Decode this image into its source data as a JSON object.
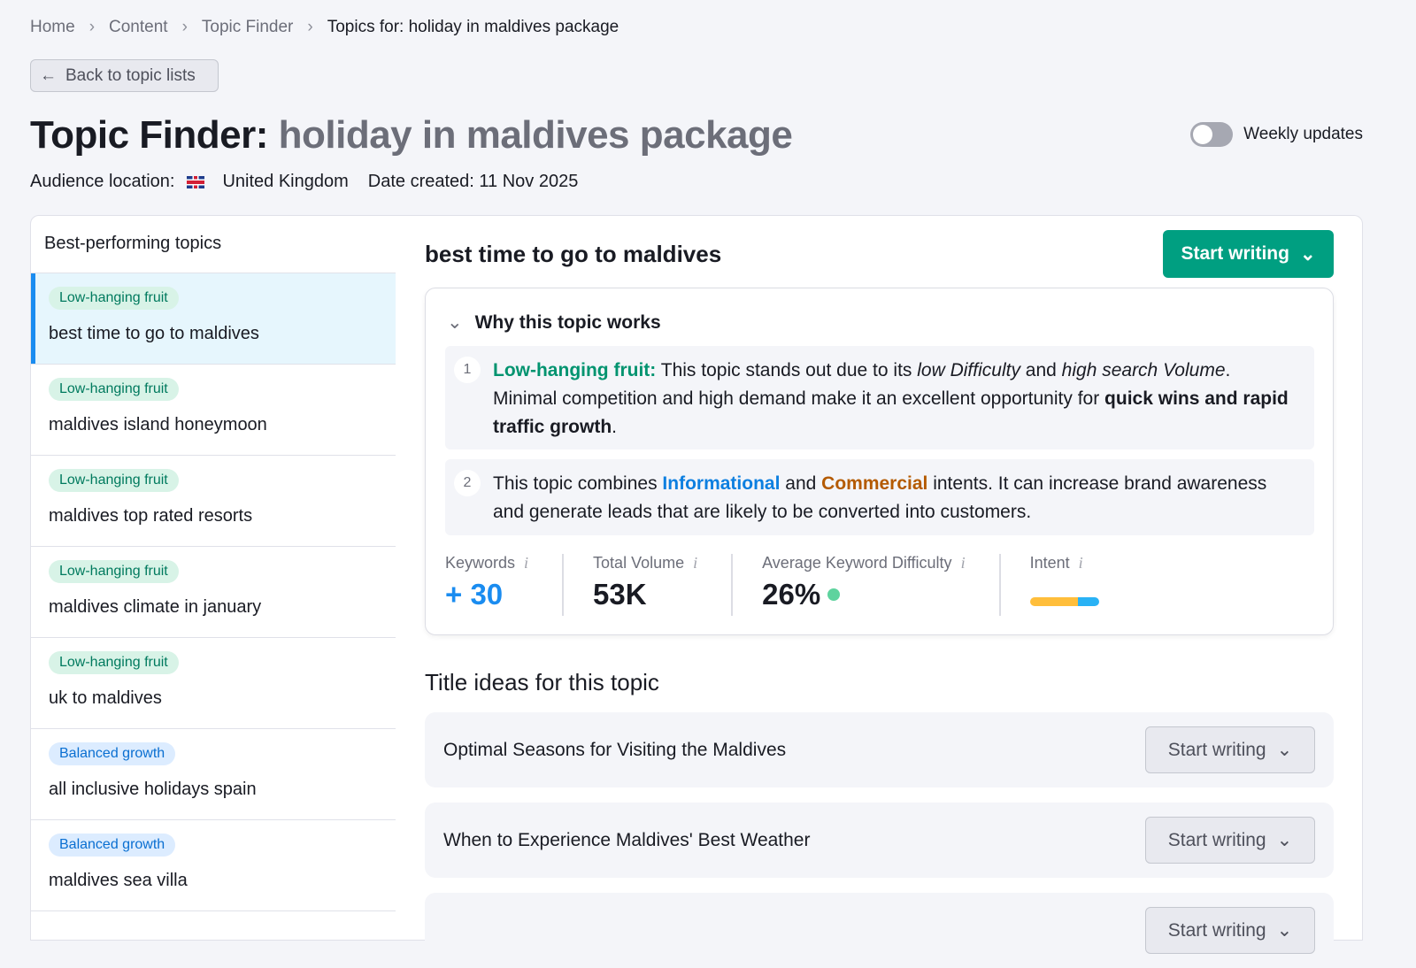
{
  "breadcrumb": [
    "Home",
    "Content",
    "Topic Finder",
    "Topics for: holiday in maldives package"
  ],
  "back_label": "Back to topic lists",
  "title": {
    "prefix": "Topic Finder:",
    "keyword": "holiday in maldives package"
  },
  "meta": {
    "audience_label": "Audience location:",
    "country": "United Kingdom",
    "date_label": "Date created: 11 Nov 2025"
  },
  "weekly_updates": {
    "label": "Weekly updates",
    "enabled": false
  },
  "sidebar": {
    "header": "Best-performing topics",
    "items": [
      {
        "tag": "Low-hanging fruit",
        "type": "g",
        "title": "best time to go to maldives",
        "selected": true
      },
      {
        "tag": "Low-hanging fruit",
        "type": "g",
        "title": "maldives island honeymoon"
      },
      {
        "tag": "Low-hanging fruit",
        "type": "g",
        "title": "maldives top rated resorts"
      },
      {
        "tag": "Low-hanging fruit",
        "type": "g",
        "title": "maldives climate in january"
      },
      {
        "tag": "Low-hanging fruit",
        "type": "g",
        "title": "uk to maldives"
      },
      {
        "tag": "Balanced growth",
        "type": "b",
        "title": "all inclusive holidays spain"
      },
      {
        "tag": "Balanced growth",
        "type": "b",
        "title": "maldives sea villa"
      }
    ]
  },
  "main": {
    "topic": "best time to go to maldives",
    "start_writing": "Start writing",
    "why": {
      "heading": "Why this topic works",
      "r1": {
        "n": "1",
        "label": "Low-hanging fruit:",
        "t1": " This topic stands out due to its ",
        "e1": "low Difficulty",
        "t2": " and ",
        "e2": "high search Volume",
        "t3": ". Minimal competition and high demand make it an excellent opportunity for ",
        "b1": "quick wins and rapid traffic growth",
        "t4": "."
      },
      "r2": {
        "n": "2",
        "t1": "This topic combines ",
        "inf": "Informational",
        "t2": " and ",
        "com": "Commercial",
        "t3": " intents. It can increase brand awareness and generate leads that are likely to be converted into customers."
      }
    },
    "stats": {
      "keywords": {
        "label": "Keywords",
        "value": "+ 30"
      },
      "volume": {
        "label": "Total Volume",
        "value": "53K"
      },
      "kd": {
        "label": "Average Keyword Difficulty",
        "value": "26%",
        "color": "#5ed39e"
      },
      "intent": {
        "label": "Intent",
        "segments": [
          {
            "name": "Informational",
            "share": 0.7,
            "color": "#ffbe3b"
          },
          {
            "name": "Commercial",
            "share": 0.3,
            "color": "#29b2f5"
          }
        ]
      }
    },
    "title_ideas_heading": "Title ideas for this topic",
    "title_ideas": [
      "Optimal Seasons for Visiting the Maldives",
      "When to Experience Maldives' Best Weather",
      ""
    ]
  }
}
